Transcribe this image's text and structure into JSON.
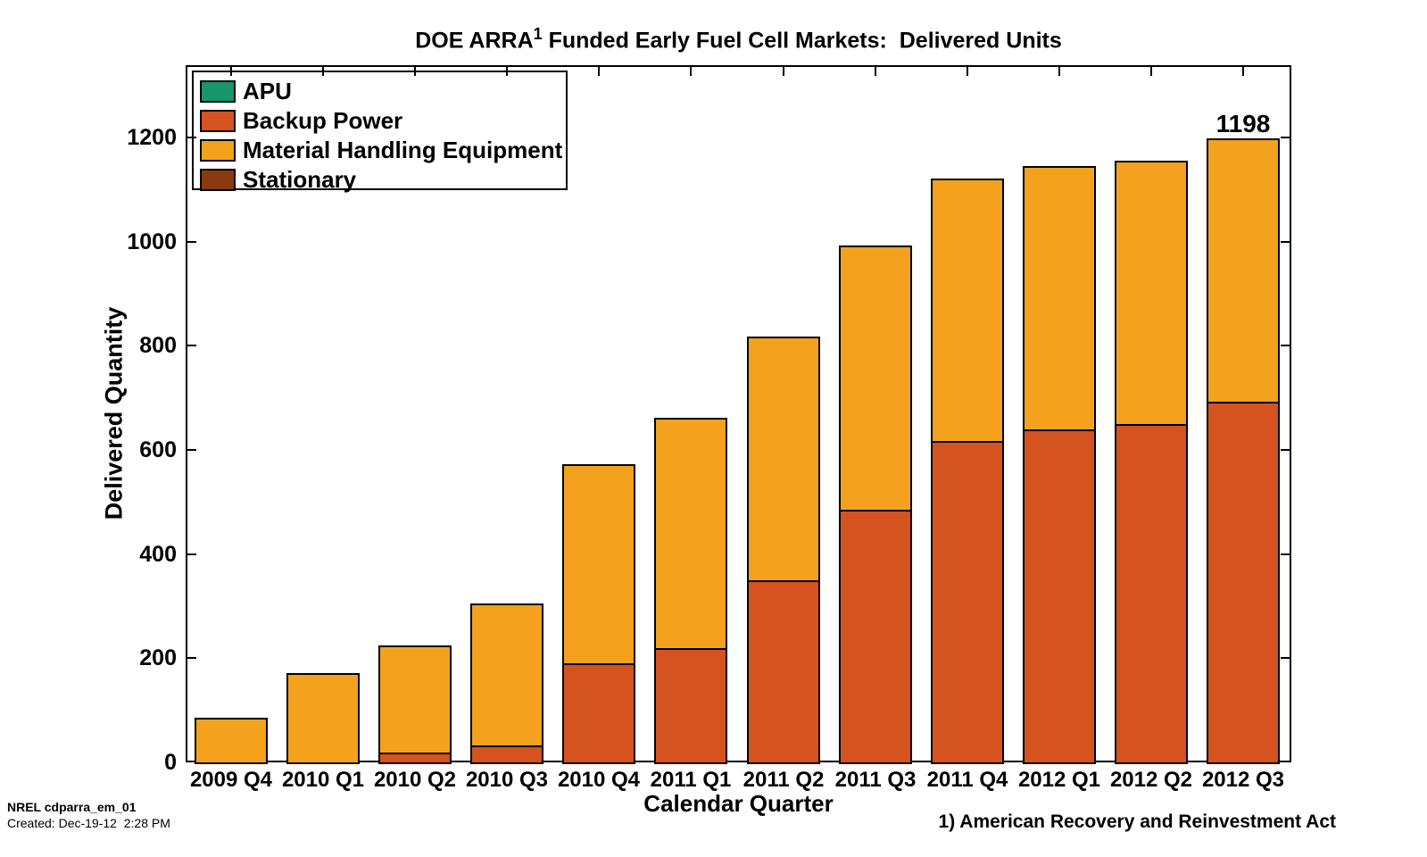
{
  "title": {
    "prefix": "DOE ARRA",
    "superscript": "1",
    "suffix": " Funded Early Fuel Cell Markets:  Delivered Units"
  },
  "footer": {
    "id_line": "NREL cdparra_em_01",
    "created_line": "Created: Dec-19-12  2:28 PM"
  },
  "footnote": "1) American Recovery and Reinvestment Act",
  "chart_data": {
    "type": "bar",
    "stacked": true,
    "categories": [
      "2009 Q4",
      "2010 Q1",
      "2010 Q2",
      "2010 Q3",
      "2010 Q4",
      "2011 Q1",
      "2011 Q2",
      "2011 Q3",
      "2011 Q4",
      "2012 Q1",
      "2012 Q2",
      "2012 Q3"
    ],
    "series": [
      {
        "name": "APU",
        "color": "#17966B",
        "values": [
          0,
          0,
          0,
          0,
          0,
          0,
          0,
          0,
          0,
          0,
          0,
          0
        ]
      },
      {
        "name": "Backup Power",
        "color": "#D4531E",
        "values": [
          0,
          0,
          18,
          32,
          190,
          220,
          350,
          485,
          617,
          640,
          650,
          692
        ]
      },
      {
        "name": "Material Handling Equipment",
        "color": "#F4A11D",
        "values": [
          85,
          172,
          207,
          274,
          382,
          442,
          468,
          507,
          505,
          506,
          505,
          506
        ]
      },
      {
        "name": "Stationary",
        "color": "#8A3A0E",
        "values": [
          0,
          0,
          0,
          0,
          0,
          0,
          0,
          0,
          0,
          0,
          0,
          0
        ]
      }
    ],
    "xlabel": "Calendar Quarter",
    "ylabel": "Delivered Quantity",
    "yticks": [
      0,
      200,
      400,
      600,
      800,
      1000,
      1200
    ],
    "ylim": [
      0,
      1340
    ],
    "grid": false,
    "legend_position": "top-left",
    "annotation": {
      "text": "1198",
      "category": "2012 Q3",
      "value": 1198
    }
  }
}
